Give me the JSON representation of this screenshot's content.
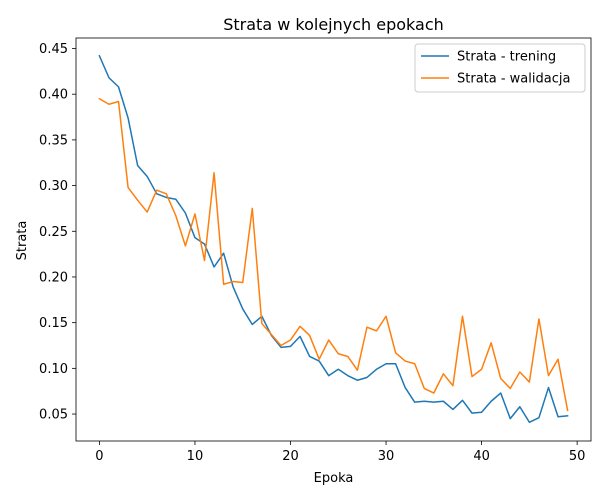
{
  "chart_data": {
    "type": "line",
    "title": "Strata w kolejnych epokach",
    "xlabel": "Epoka",
    "ylabel": "Strata",
    "xlim": [
      -2.45,
      51.45
    ],
    "ylim": [
      0.0205,
      0.4615
    ],
    "xticks": [
      0,
      10,
      20,
      30,
      40,
      50
    ],
    "yticks": [
      0.05,
      0.1,
      0.15,
      0.2,
      0.25,
      0.3,
      0.35,
      0.4,
      0.45
    ],
    "ytick_labels": [
      "0.05",
      "0.10",
      "0.15",
      "0.20",
      "0.25",
      "0.30",
      "0.35",
      "0.40",
      "0.45"
    ],
    "grid": false,
    "legend_position": "top-right",
    "x": [
      0,
      1,
      2,
      3,
      4,
      5,
      6,
      7,
      8,
      9,
      10,
      11,
      12,
      13,
      14,
      15,
      16,
      17,
      18,
      19,
      20,
      21,
      22,
      23,
      24,
      25,
      26,
      27,
      28,
      29,
      30,
      31,
      32,
      33,
      34,
      35,
      36,
      37,
      38,
      39,
      40,
      41,
      42,
      43,
      44,
      45,
      46,
      47,
      48,
      49
    ],
    "series": [
      {
        "name": "Strata - trening",
        "color": "#1f77b4",
        "values": [
          0.442,
          0.418,
          0.408,
          0.374,
          0.322,
          0.31,
          0.291,
          0.287,
          0.285,
          0.27,
          0.243,
          0.236,
          0.211,
          0.226,
          0.189,
          0.165,
          0.148,
          0.157,
          0.136,
          0.123,
          0.124,
          0.135,
          0.113,
          0.108,
          0.092,
          0.099,
          0.092,
          0.087,
          0.09,
          0.099,
          0.105,
          0.105,
          0.079,
          0.063,
          0.064,
          0.063,
          0.064,
          0.055,
          0.065,
          0.051,
          0.052,
          0.064,
          0.073,
          0.045,
          0.058,
          0.041,
          0.046,
          0.079,
          0.047,
          0.048
        ]
      },
      {
        "name": "Strata - walidacja",
        "color": "#ff7f0e",
        "values": [
          0.395,
          0.389,
          0.392,
          0.298,
          0.284,
          0.271,
          0.295,
          0.291,
          0.267,
          0.234,
          0.269,
          0.218,
          0.314,
          0.192,
          0.195,
          0.194,
          0.275,
          0.149,
          0.137,
          0.125,
          0.131,
          0.146,
          0.136,
          0.11,
          0.131,
          0.116,
          0.113,
          0.098,
          0.145,
          0.141,
          0.157,
          0.117,
          0.108,
          0.105,
          0.078,
          0.073,
          0.094,
          0.081,
          0.157,
          0.091,
          0.099,
          0.128,
          0.089,
          0.078,
          0.096,
          0.085,
          0.154,
          0.092,
          0.11,
          0.054
        ]
      }
    ]
  }
}
